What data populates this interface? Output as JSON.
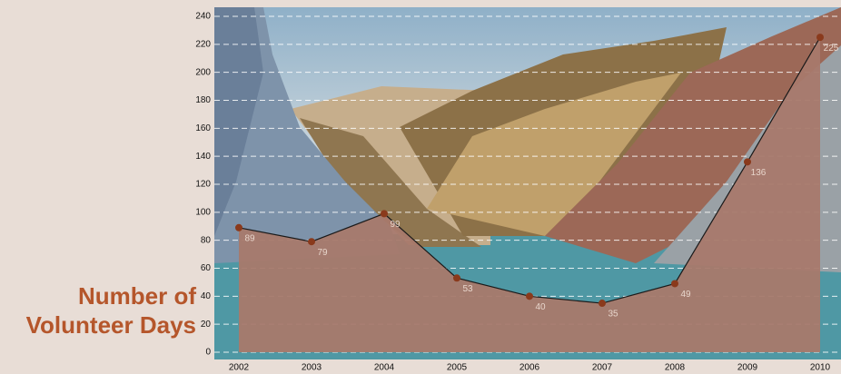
{
  "chart_data": {
    "type": "area",
    "title": "Number of Volunteer Days",
    "categories": [
      "2002",
      "2003",
      "2004",
      "2005",
      "2006",
      "2007",
      "2008",
      "2009",
      "2010"
    ],
    "values": [
      89,
      79,
      99,
      53,
      40,
      35,
      49,
      136,
      225
    ],
    "color": "#a8796b",
    "line_color": "#1a1a1a",
    "ylim": [
      0,
      240
    ],
    "yticks": [
      0,
      20,
      40,
      60,
      80,
      100,
      120,
      140,
      160,
      180,
      200,
      220,
      240
    ],
    "grid": true
  }
}
